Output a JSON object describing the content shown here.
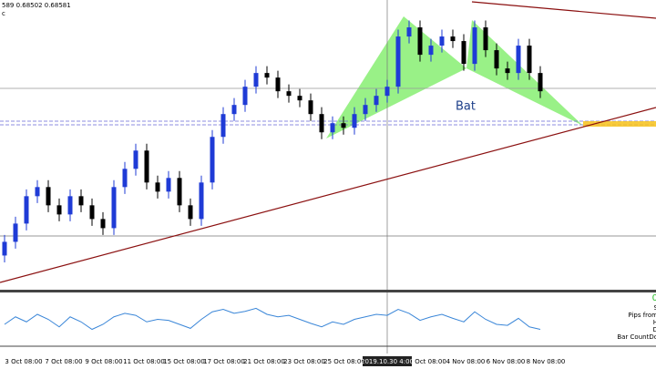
{
  "chart_data": {
    "type": "candlestick",
    "header": "589 0.68502 0.68581",
    "header_sub": "c",
    "pattern_label": "Bat",
    "ylim": [
      0.6773,
      0.69
    ],
    "bull_color": "#1f3bd6",
    "bear_color": "#000000",
    "open": [
      0.6788,
      0.6794,
      0.6802,
      0.6814,
      0.6818,
      0.681,
      0.6806,
      0.6814,
      0.681,
      0.6804,
      0.68,
      0.6818,
      0.6826,
      0.6834,
      0.682,
      0.6816,
      0.6822,
      0.681,
      0.6804,
      0.682,
      0.684,
      0.685,
      0.6854,
      0.6862,
      0.6868,
      0.6866,
      0.686,
      0.6858,
      0.6856,
      0.685,
      0.6842,
      0.6846,
      0.6844,
      0.685,
      0.6854,
      0.6858,
      0.6862,
      0.6884,
      0.6888,
      0.6876,
      0.688,
      0.6884,
      0.6882,
      0.6872,
      0.6888,
      0.6878,
      0.687,
      0.6868,
      0.688,
      0.6868
    ],
    "high": [
      0.6797,
      0.6805,
      0.6817,
      0.6821,
      0.6821,
      0.6813,
      0.6817,
      0.6817,
      0.6813,
      0.6807,
      0.6821,
      0.6829,
      0.6837,
      0.6837,
      0.6823,
      0.6825,
      0.6825,
      0.6813,
      0.6823,
      0.6843,
      0.6853,
      0.6857,
      0.6865,
      0.6871,
      0.6871,
      0.6869,
      0.6863,
      0.6861,
      0.6859,
      0.6853,
      0.6849,
      0.6849,
      0.6853,
      0.6857,
      0.6861,
      0.6865,
      0.6887,
      0.6891,
      0.6891,
      0.6883,
      0.6887,
      0.6887,
      0.6885,
      0.6891,
      0.6891,
      0.6881,
      0.6873,
      0.6883,
      0.6883,
      0.6871
    ],
    "low": [
      0.6785,
      0.6791,
      0.6799,
      0.6811,
      0.6807,
      0.6803,
      0.6803,
      0.6807,
      0.6801,
      0.6797,
      0.6797,
      0.6815,
      0.6823,
      0.6817,
      0.6813,
      0.6813,
      0.6807,
      0.6801,
      0.6801,
      0.6817,
      0.6837,
      0.6847,
      0.6851,
      0.6859,
      0.6863,
      0.6857,
      0.6855,
      0.6853,
      0.6847,
      0.6839,
      0.6839,
      0.6841,
      0.6841,
      0.6847,
      0.6851,
      0.6855,
      0.6859,
      0.6881,
      0.6873,
      0.6873,
      0.6877,
      0.6879,
      0.6869,
      0.6869,
      0.6875,
      0.6867,
      0.6865,
      0.6865,
      0.6865,
      0.6857
    ],
    "close": [
      0.6794,
      0.6802,
      0.6814,
      0.6818,
      0.681,
      0.6806,
      0.6814,
      0.681,
      0.6804,
      0.68,
      0.6818,
      0.6826,
      0.6834,
      0.682,
      0.6816,
      0.6822,
      0.681,
      0.6804,
      0.682,
      0.684,
      0.685,
      0.6854,
      0.6862,
      0.6868,
      0.6866,
      0.686,
      0.6858,
      0.6856,
      0.685,
      0.6842,
      0.6846,
      0.6844,
      0.685,
      0.6854,
      0.6858,
      0.6862,
      0.6884,
      0.6888,
      0.6876,
      0.688,
      0.6884,
      0.6882,
      0.6872,
      0.6888,
      0.6878,
      0.687,
      0.6868,
      0.688,
      0.6868,
      0.686
    ],
    "oscillator": {
      "color": "#3a86d8",
      "ylim": [
        0,
        100
      ],
      "values": [
        40,
        55,
        45,
        60,
        50,
        35,
        55,
        45,
        30,
        40,
        55,
        62,
        58,
        45,
        50,
        48,
        40,
        32,
        50,
        65,
        70,
        62,
        66,
        72,
        60,
        55,
        58,
        50,
        42,
        35,
        45,
        40,
        50,
        55,
        60,
        58,
        70,
        62,
        48,
        55,
        60,
        52,
        45,
        65,
        50,
        40,
        38,
        52,
        35,
        30
      ]
    },
    "x_labels": [
      "3 Oct 08:00",
      "7 Oct 08:00",
      "9 Oct 08:00",
      "11 Oct 08:00",
      "15 Oct 08:00",
      "17 Oct 08:00",
      "21 Oct 08:00",
      "23 Oct 08:00",
      "25 Oct 08:00",
      "31 Oct 08:00",
      "4 Nov 08:00",
      "6 Nov 08:00",
      "8 Nov 08:00"
    ],
    "crosshair_label": "2019.10.30 4:00",
    "side_texts": [
      "0",
      "S",
      "Pips from",
      "H",
      "D",
      "Bar CountDo"
    ]
  }
}
